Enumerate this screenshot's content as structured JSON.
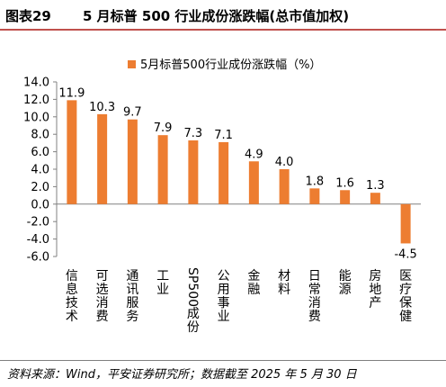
{
  "figure": {
    "number": "图表29",
    "title": "5 月标普 500 行业成份涨跌幅(总市值加权)",
    "source": "资料来源：Wind，平安证券研究所；数据截至 2025 年 5 月 30 日"
  },
  "chart_data": {
    "type": "bar",
    "title": "",
    "series": [
      {
        "name": "5月标普500行业成份涨跌幅（%）",
        "color": "#ed7d31",
        "values": [
          11.9,
          10.3,
          9.7,
          7.9,
          7.3,
          7.1,
          4.9,
          4.0,
          1.8,
          1.6,
          1.3,
          -4.5
        ]
      }
    ],
    "categories": [
      "信息技术",
      "可选消费",
      "通讯服务",
      "工业",
      "SP500成份",
      "公用事业",
      "金融",
      "材料",
      "日常消费",
      "能源",
      "房地产",
      "医疗保健"
    ],
    "data_labels": [
      "11.9",
      "10.3",
      "9.7",
      "7.9",
      "7.3",
      "7.1",
      "4.9",
      "4.0",
      "1.8",
      "1.6",
      "1.3",
      "-4.5"
    ],
    "y_ticks": [
      "14.0",
      "12.0",
      "10.0",
      "8.0",
      "6.0",
      "4.0",
      "2.0",
      "0.0",
      "-2.0",
      "-4.0",
      "-6.0"
    ],
    "ylim": [
      -6,
      14
    ],
    "grid": false,
    "legend_position": "top"
  }
}
